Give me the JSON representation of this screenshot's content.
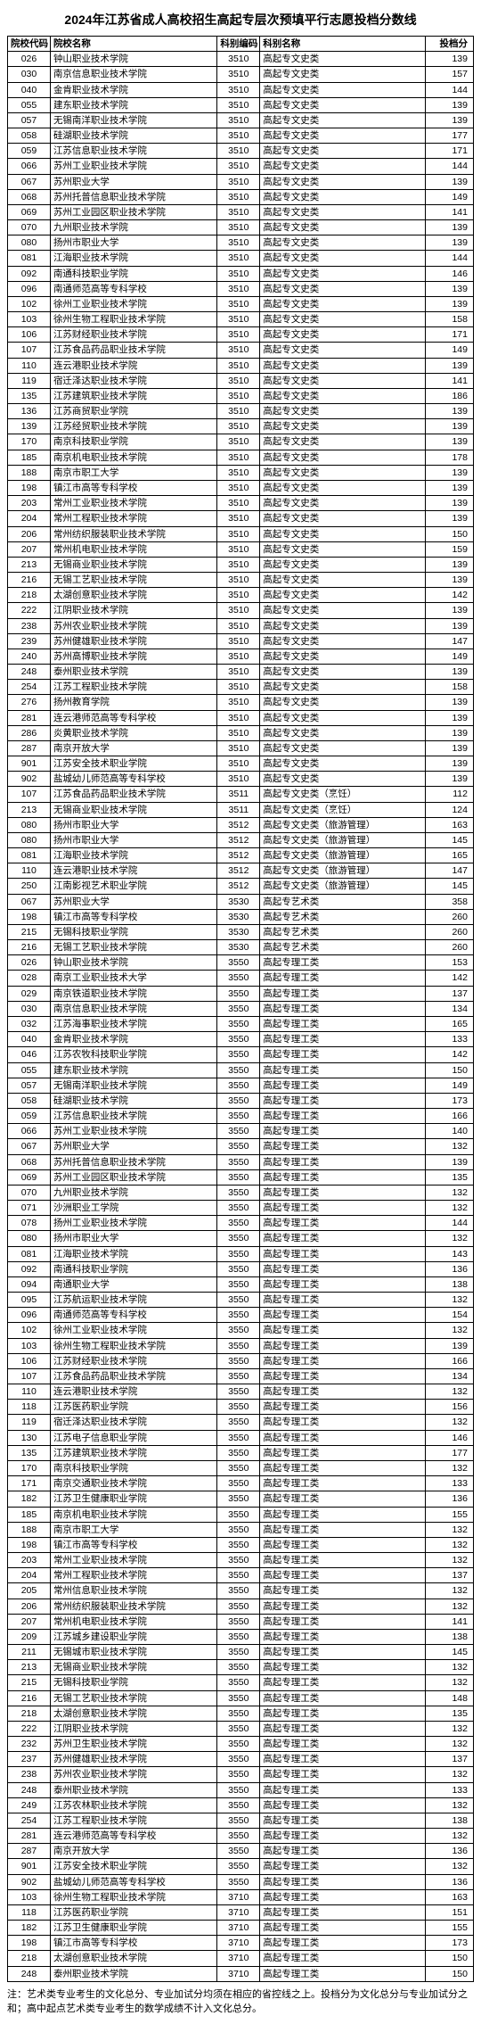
{
  "title": "2024年江苏省成人高校招生高起专层次预填平行志愿投档分数线",
  "columns": [
    "院校代码",
    "院校名称",
    "科别编码",
    "科别名称",
    "投档分"
  ],
  "footnote": "注：艺术类专业考生的文化总分、专业加试分均须在相应的省控线之上。投档分为文化总分与专业加试分之和；高中起点艺术类专业考生的数学成绩不计入文化总分。",
  "rows": [
    [
      "026",
      "钟山职业技术学院",
      "3510",
      "高起专文史类",
      "139"
    ],
    [
      "030",
      "南京信息职业技术学院",
      "3510",
      "高起专文史类",
      "157"
    ],
    [
      "040",
      "金肯职业技术学院",
      "3510",
      "高起专文史类",
      "144"
    ],
    [
      "055",
      "建东职业技术学院",
      "3510",
      "高起专文史类",
      "139"
    ],
    [
      "057",
      "无锡南洋职业技术学院",
      "3510",
      "高起专文史类",
      "139"
    ],
    [
      "058",
      "硅湖职业技术学院",
      "3510",
      "高起专文史类",
      "177"
    ],
    [
      "059",
      "江苏信息职业技术学院",
      "3510",
      "高起专文史类",
      "171"
    ],
    [
      "066",
      "苏州工业职业技术学院",
      "3510",
      "高起专文史类",
      "144"
    ],
    [
      "067",
      "苏州职业大学",
      "3510",
      "高起专文史类",
      "139"
    ],
    [
      "068",
      "苏州托普信息职业技术学院",
      "3510",
      "高起专文史类",
      "149"
    ],
    [
      "069",
      "苏州工业园区职业技术学院",
      "3510",
      "高起专文史类",
      "141"
    ],
    [
      "070",
      "九州职业技术学院",
      "3510",
      "高起专文史类",
      "139"
    ],
    [
      "080",
      "扬州市职业大学",
      "3510",
      "高起专文史类",
      "139"
    ],
    [
      "081",
      "江海职业技术学院",
      "3510",
      "高起专文史类",
      "144"
    ],
    [
      "092",
      "南通科技职业学院",
      "3510",
      "高起专文史类",
      "146"
    ],
    [
      "096",
      "南通师范高等专科学校",
      "3510",
      "高起专文史类",
      "139"
    ],
    [
      "102",
      "徐州工业职业技术学院",
      "3510",
      "高起专文史类",
      "139"
    ],
    [
      "103",
      "徐州生物工程职业技术学院",
      "3510",
      "高起专文史类",
      "158"
    ],
    [
      "106",
      "江苏财经职业技术学院",
      "3510",
      "高起专文史类",
      "171"
    ],
    [
      "107",
      "江苏食品药品职业技术学院",
      "3510",
      "高起专文史类",
      "149"
    ],
    [
      "110",
      "连云港职业技术学院",
      "3510",
      "高起专文史类",
      "139"
    ],
    [
      "119",
      "宿迁泽达职业技术学院",
      "3510",
      "高起专文史类",
      "141"
    ],
    [
      "135",
      "江苏建筑职业技术学院",
      "3510",
      "高起专文史类",
      "186"
    ],
    [
      "136",
      "江苏商贸职业学院",
      "3510",
      "高起专文史类",
      "139"
    ],
    [
      "139",
      "江苏经贸职业技术学院",
      "3510",
      "高起专文史类",
      "139"
    ],
    [
      "170",
      "南京科技职业学院",
      "3510",
      "高起专文史类",
      "139"
    ],
    [
      "185",
      "南京机电职业技术学院",
      "3510",
      "高起专文史类",
      "178"
    ],
    [
      "188",
      "南京市职工大学",
      "3510",
      "高起专文史类",
      "139"
    ],
    [
      "198",
      "镇江市高等专科学校",
      "3510",
      "高起专文史类",
      "139"
    ],
    [
      "203",
      "常州工业职业技术学院",
      "3510",
      "高起专文史类",
      "139"
    ],
    [
      "204",
      "常州工程职业技术学院",
      "3510",
      "高起专文史类",
      "139"
    ],
    [
      "206",
      "常州纺织服装职业技术学院",
      "3510",
      "高起专文史类",
      "150"
    ],
    [
      "207",
      "常州机电职业技术学院",
      "3510",
      "高起专文史类",
      "159"
    ],
    [
      "213",
      "无锡商业职业技术学院",
      "3510",
      "高起专文史类",
      "139"
    ],
    [
      "216",
      "无锡工艺职业技术学院",
      "3510",
      "高起专文史类",
      "139"
    ],
    [
      "218",
      "太湖创意职业技术学院",
      "3510",
      "高起专文史类",
      "142"
    ],
    [
      "222",
      "江阴职业技术学院",
      "3510",
      "高起专文史类",
      "139"
    ],
    [
      "238",
      "苏州农业职业技术学院",
      "3510",
      "高起专文史类",
      "139"
    ],
    [
      "239",
      "苏州健雄职业技术学院",
      "3510",
      "高起专文史类",
      "147"
    ],
    [
      "240",
      "苏州高博职业技术学院",
      "3510",
      "高起专文史类",
      "149"
    ],
    [
      "248",
      "泰州职业技术学院",
      "3510",
      "高起专文史类",
      "139"
    ],
    [
      "254",
      "江苏工程职业技术学院",
      "3510",
      "高起专文史类",
      "158"
    ],
    [
      "276",
      "扬州教育学院",
      "3510",
      "高起专文史类",
      "139"
    ],
    [
      "281",
      "连云港师范高等专科学校",
      "3510",
      "高起专文史类",
      "139"
    ],
    [
      "286",
      "炎黄职业技术学院",
      "3510",
      "高起专文史类",
      "139"
    ],
    [
      "287",
      "南京开放大学",
      "3510",
      "高起专文史类",
      "139"
    ],
    [
      "901",
      "江苏安全技术职业学院",
      "3510",
      "高起专文史类",
      "139"
    ],
    [
      "902",
      "盐城幼儿师范高等专科学校",
      "3510",
      "高起专文史类",
      "139"
    ],
    [
      "107",
      "江苏食品药品职业技术学院",
      "3511",
      "高起专文史类（烹饪）",
      "112"
    ],
    [
      "213",
      "无锡商业职业技术学院",
      "3511",
      "高起专文史类（烹饪）",
      "124"
    ],
    [
      "080",
      "扬州市职业大学",
      "3512",
      "高起专文史类（旅游管理）",
      "163"
    ],
    [
      "080",
      "扬州市职业大学",
      "3512",
      "高起专文史类（旅游管理）",
      "145"
    ],
    [
      "081",
      "江海职业技术学院",
      "3512",
      "高起专文史类（旅游管理）",
      "165"
    ],
    [
      "110",
      "连云港职业技术学院",
      "3512",
      "高起专文史类（旅游管理）",
      "147"
    ],
    [
      "250",
      "江南影视艺术职业学院",
      "3512",
      "高起专文史类（旅游管理）",
      "145"
    ],
    [
      "067",
      "苏州职业大学",
      "3530",
      "高起专艺术类",
      "358"
    ],
    [
      "198",
      "镇江市高等专科学校",
      "3530",
      "高起专艺术类",
      "260"
    ],
    [
      "215",
      "无锡科技职业学院",
      "3530",
      "高起专艺术类",
      "260"
    ],
    [
      "216",
      "无锡工艺职业技术学院",
      "3530",
      "高起专艺术类",
      "260"
    ],
    [
      "026",
      "钟山职业技术学院",
      "3550",
      "高起专理工类",
      "153"
    ],
    [
      "028",
      "南京工业职业技术大学",
      "3550",
      "高起专理工类",
      "142"
    ],
    [
      "029",
      "南京铁道职业技术学院",
      "3550",
      "高起专理工类",
      "137"
    ],
    [
      "030",
      "南京信息职业技术学院",
      "3550",
      "高起专理工类",
      "134"
    ],
    [
      "032",
      "江苏海事职业技术学院",
      "3550",
      "高起专理工类",
      "165"
    ],
    [
      "040",
      "金肯职业技术学院",
      "3550",
      "高起专理工类",
      "133"
    ],
    [
      "046",
      "江苏农牧科技职业学院",
      "3550",
      "高起专理工类",
      "142"
    ],
    [
      "055",
      "建东职业技术学院",
      "3550",
      "高起专理工类",
      "150"
    ],
    [
      "057",
      "无锡南洋职业技术学院",
      "3550",
      "高起专理工类",
      "149"
    ],
    [
      "058",
      "硅湖职业技术学院",
      "3550",
      "高起专理工类",
      "173"
    ],
    [
      "059",
      "江苏信息职业技术学院",
      "3550",
      "高起专理工类",
      "166"
    ],
    [
      "066",
      "苏州工业职业技术学院",
      "3550",
      "高起专理工类",
      "140"
    ],
    [
      "067",
      "苏州职业大学",
      "3550",
      "高起专理工类",
      "132"
    ],
    [
      "068",
      "苏州托普信息职业技术学院",
      "3550",
      "高起专理工类",
      "139"
    ],
    [
      "069",
      "苏州工业园区职业技术学院",
      "3550",
      "高起专理工类",
      "135"
    ],
    [
      "070",
      "九州职业技术学院",
      "3550",
      "高起专理工类",
      "132"
    ],
    [
      "071",
      "沙洲职业工学院",
      "3550",
      "高起专理工类",
      "132"
    ],
    [
      "078",
      "扬州工业职业技术学院",
      "3550",
      "高起专理工类",
      "144"
    ],
    [
      "080",
      "扬州市职业大学",
      "3550",
      "高起专理工类",
      "132"
    ],
    [
      "081",
      "江海职业技术学院",
      "3550",
      "高起专理工类",
      "143"
    ],
    [
      "092",
      "南通科技职业学院",
      "3550",
      "高起专理工类",
      "136"
    ],
    [
      "094",
      "南通职业大学",
      "3550",
      "高起专理工类",
      "138"
    ],
    [
      "095",
      "江苏航运职业技术学院",
      "3550",
      "高起专理工类",
      "132"
    ],
    [
      "096",
      "南通师范高等专科学校",
      "3550",
      "高起专理工类",
      "154"
    ],
    [
      "102",
      "徐州工业职业技术学院",
      "3550",
      "高起专理工类",
      "132"
    ],
    [
      "103",
      "徐州生物工程职业技术学院",
      "3550",
      "高起专理工类",
      "139"
    ],
    [
      "106",
      "江苏财经职业技术学院",
      "3550",
      "高起专理工类",
      "166"
    ],
    [
      "107",
      "江苏食品药品职业技术学院",
      "3550",
      "高起专理工类",
      "134"
    ],
    [
      "110",
      "连云港职业技术学院",
      "3550",
      "高起专理工类",
      "132"
    ],
    [
      "118",
      "江苏医药职业学院",
      "3550",
      "高起专理工类",
      "156"
    ],
    [
      "119",
      "宿迁泽达职业技术学院",
      "3550",
      "高起专理工类",
      "132"
    ],
    [
      "130",
      "江苏电子信息职业学院",
      "3550",
      "高起专理工类",
      "146"
    ],
    [
      "135",
      "江苏建筑职业技术学院",
      "3550",
      "高起专理工类",
      "177"
    ],
    [
      "170",
      "南京科技职业学院",
      "3550",
      "高起专理工类",
      "132"
    ],
    [
      "171",
      "南京交通职业技术学院",
      "3550",
      "高起专理工类",
      "133"
    ],
    [
      "182",
      "江苏卫生健康职业学院",
      "3550",
      "高起专理工类",
      "136"
    ],
    [
      "185",
      "南京机电职业技术学院",
      "3550",
      "高起专理工类",
      "155"
    ],
    [
      "188",
      "南京市职工大学",
      "3550",
      "高起专理工类",
      "132"
    ],
    [
      "198",
      "镇江市高等专科学校",
      "3550",
      "高起专理工类",
      "132"
    ],
    [
      "203",
      "常州工业职业技术学院",
      "3550",
      "高起专理工类",
      "132"
    ],
    [
      "204",
      "常州工程职业技术学院",
      "3550",
      "高起专理工类",
      "137"
    ],
    [
      "205",
      "常州信息职业技术学院",
      "3550",
      "高起专理工类",
      "132"
    ],
    [
      "206",
      "常州纺织服装职业技术学院",
      "3550",
      "高起专理工类",
      "132"
    ],
    [
      "207",
      "常州机电职业技术学院",
      "3550",
      "高起专理工类",
      "141"
    ],
    [
      "209",
      "江苏城乡建设职业学院",
      "3550",
      "高起专理工类",
      "138"
    ],
    [
      "211",
      "无锡城市职业技术学院",
      "3550",
      "高起专理工类",
      "145"
    ],
    [
      "213",
      "无锡商业职业技术学院",
      "3550",
      "高起专理工类",
      "132"
    ],
    [
      "215",
      "无锡科技职业学院",
      "3550",
      "高起专理工类",
      "132"
    ],
    [
      "216",
      "无锡工艺职业技术学院",
      "3550",
      "高起专理工类",
      "148"
    ],
    [
      "218",
      "太湖创意职业技术学院",
      "3550",
      "高起专理工类",
      "135"
    ],
    [
      "222",
      "江阴职业技术学院",
      "3550",
      "高起专理工类",
      "132"
    ],
    [
      "232",
      "苏州卫生职业技术学院",
      "3550",
      "高起专理工类",
      "132"
    ],
    [
      "237",
      "苏州健雄职业技术学院",
      "3550",
      "高起专理工类",
      "137"
    ],
    [
      "238",
      "苏州农业职业技术学院",
      "3550",
      "高起专理工类",
      "132"
    ],
    [
      "248",
      "泰州职业技术学院",
      "3550",
      "高起专理工类",
      "133"
    ],
    [
      "249",
      "江苏农林职业技术学院",
      "3550",
      "高起专理工类",
      "132"
    ],
    [
      "254",
      "江苏工程职业技术学院",
      "3550",
      "高起专理工类",
      "138"
    ],
    [
      "281",
      "连云港师范高等专科学校",
      "3550",
      "高起专理工类",
      "132"
    ],
    [
      "287",
      "南京开放大学",
      "3550",
      "高起专理工类",
      "136"
    ],
    [
      "901",
      "江苏安全技术职业学院",
      "3550",
      "高起专理工类",
      "132"
    ],
    [
      "902",
      "盐城幼儿师范高等专科学校",
      "3550",
      "高起专理工类",
      "136"
    ],
    [
      "103",
      "徐州生物工程职业技术学院",
      "3710",
      "高起专理工类",
      "163"
    ],
    [
      "118",
      "江苏医药职业学院",
      "3710",
      "高起专理工类",
      "151"
    ],
    [
      "182",
      "江苏卫生健康职业学院",
      "3710",
      "高起专理工类",
      "155"
    ],
    [
      "198",
      "镇江市高等专科学校",
      "3710",
      "高起专理工类",
      "173"
    ],
    [
      "218",
      "太湖创意职业技术学院",
      "3710",
      "高起专理工类",
      "150"
    ],
    [
      "248",
      "泰州职业技术学院",
      "3710",
      "高起专理工类",
      "150"
    ]
  ]
}
